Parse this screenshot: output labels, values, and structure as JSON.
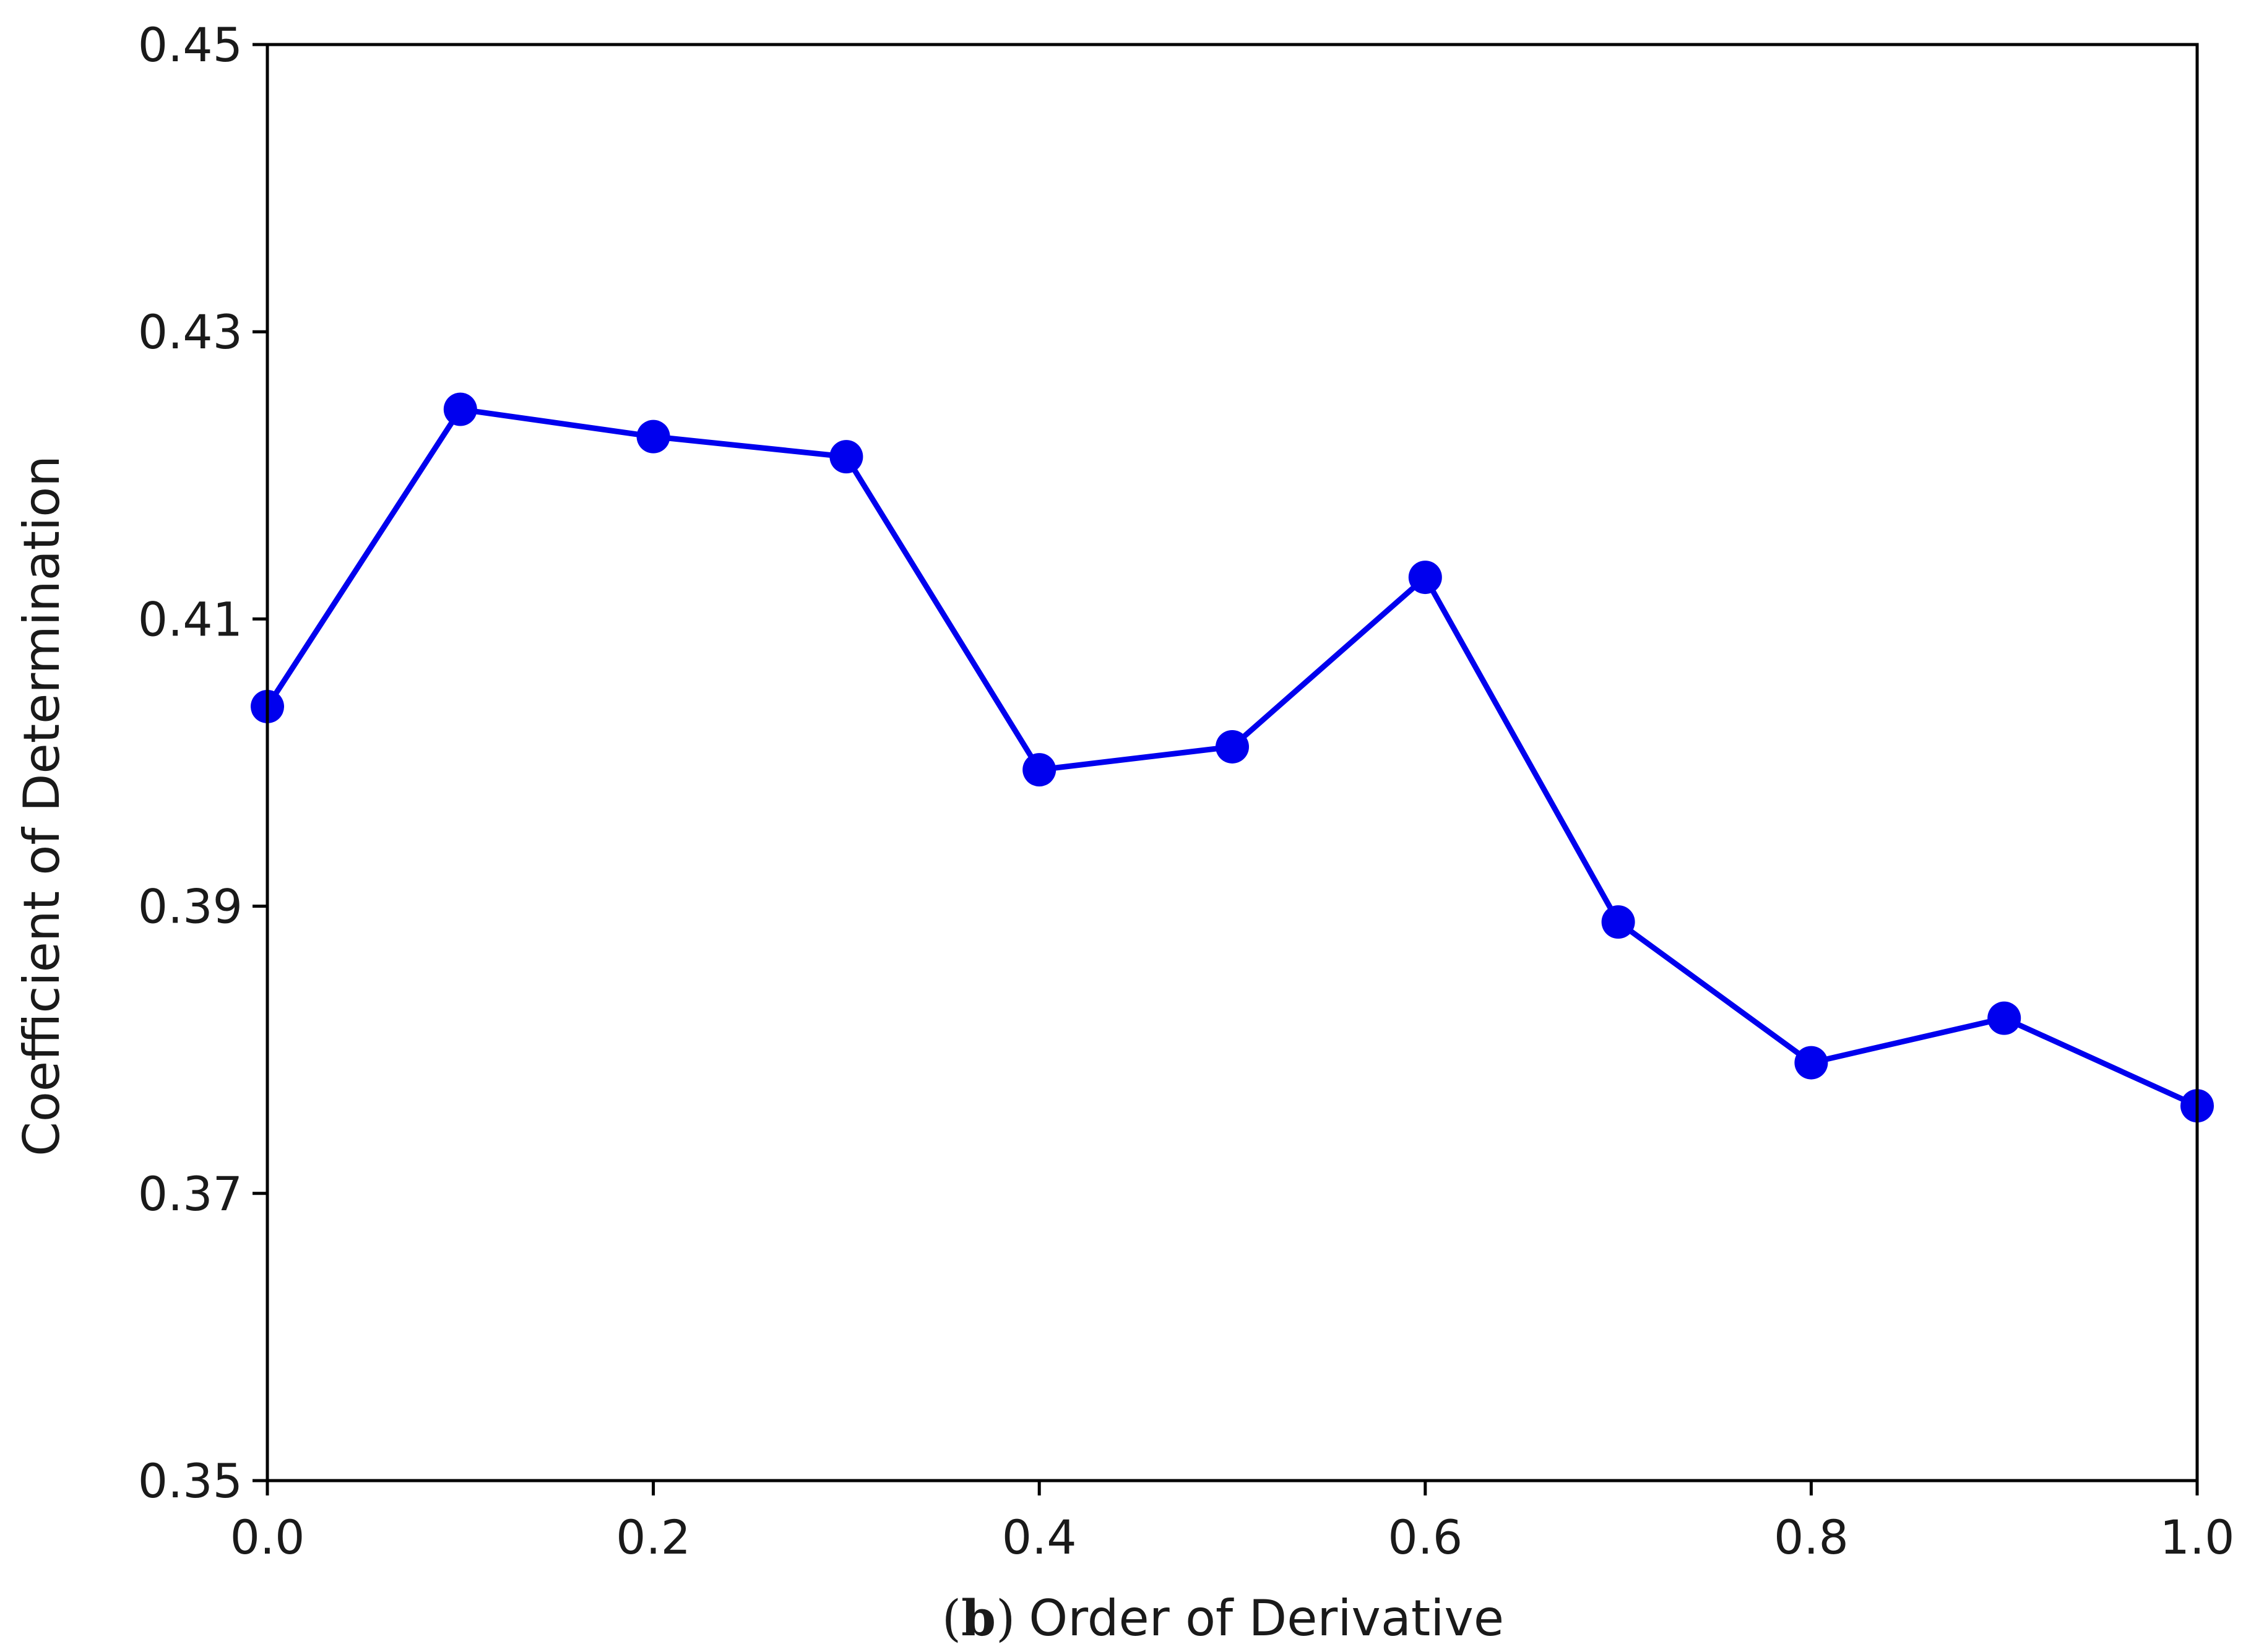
{
  "chart_data": {
    "type": "line",
    "title": "",
    "panel_label": "b",
    "xlabel": "Order of Derivative",
    "ylabel": "Coefficient of Determination",
    "xlim": [
      0.0,
      1.0
    ],
    "ylim": [
      0.35,
      0.45
    ],
    "x_ticks": [
      0.0,
      0.2,
      0.4,
      0.6,
      0.8,
      1.0
    ],
    "x_tick_labels": [
      "0.0",
      "0.2",
      "0.4",
      "0.6",
      "0.8",
      "1.0"
    ],
    "y_ticks": [
      0.35,
      0.37,
      0.39,
      0.41,
      0.43,
      0.45
    ],
    "y_tick_labels": [
      "0.35",
      "0.37",
      "0.39",
      "0.41",
      "0.43",
      "0.45"
    ],
    "grid": false,
    "series": [
      {
        "color": "#0000ee",
        "marker": "circle",
        "x": [
          0.0,
          0.1,
          0.2,
          0.3,
          0.4,
          0.5,
          0.6,
          0.7,
          0.8,
          0.9,
          1.0
        ],
        "y": [
          0.4039,
          0.4246,
          0.4227,
          0.4213,
          0.3995,
          0.4011,
          0.4129,
          0.3889,
          0.3791,
          0.3822,
          0.3761
        ]
      }
    ]
  }
}
